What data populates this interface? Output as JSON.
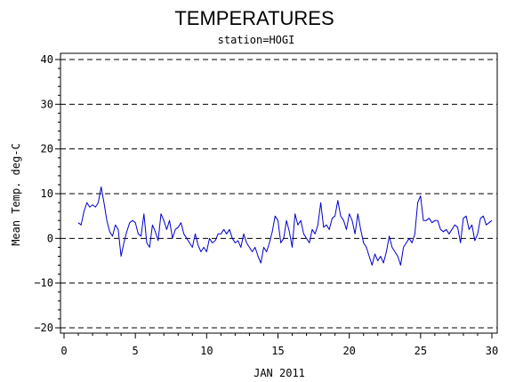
{
  "chart_data": {
    "type": "line",
    "title": "TEMPERATURES",
    "subtitle": "station=HOGI",
    "xlabel": "JAN 2011",
    "ylabel": "Mean Temp. deg-C",
    "xlim": [
      0,
      30
    ],
    "ylim": [
      -20,
      40
    ],
    "x_ticks": [
      0,
      5,
      10,
      15,
      20,
      25,
      30
    ],
    "y_ticks": [
      -20,
      -10,
      0,
      10,
      20,
      30,
      40
    ],
    "grid": "dashed horizontal lines at major y ticks",
    "line_color": "#0000cc",
    "series": [
      {
        "x": [
          1.0,
          1.2,
          1.4,
          1.6,
          1.8,
          2.0,
          2.2,
          2.4,
          2.6,
          2.8,
          3.0,
          3.2,
          3.4,
          3.6,
          3.8,
          4.0,
          4.2,
          4.4,
          4.6,
          4.8,
          5.0,
          5.2,
          5.4,
          5.6,
          5.8,
          6.0,
          6.2,
          6.4,
          6.6,
          6.8,
          7.0,
          7.2,
          7.4,
          7.6,
          7.8,
          8.0,
          8.2,
          8.4,
          8.6,
          8.8,
          9.0,
          9.2,
          9.4,
          9.6,
          9.8,
          10.0,
          10.2,
          10.4,
          10.6,
          10.8,
          11.0,
          11.2,
          11.4,
          11.6,
          11.8,
          12.0,
          12.2,
          12.4,
          12.6,
          12.8,
          13.0,
          13.2,
          13.4,
          13.6,
          13.8,
          14.0,
          14.2,
          14.4,
          14.6,
          14.8,
          15.0,
          15.2,
          15.4,
          15.6,
          15.8,
          16.0,
          16.2,
          16.4,
          16.6,
          16.8,
          17.0,
          17.2,
          17.4,
          17.6,
          17.8,
          18.0,
          18.2,
          18.4,
          18.6,
          18.8,
          19.0,
          19.2,
          19.4,
          19.6,
          19.8,
          20.0,
          20.2,
          20.4,
          20.6,
          20.8,
          21.0,
          21.2,
          21.4,
          21.6,
          21.8,
          22.0,
          22.2,
          22.4,
          22.6,
          22.8,
          23.0,
          23.2,
          23.4,
          23.6,
          23.8,
          24.0,
          24.2,
          24.4,
          24.6,
          24.8,
          25.0,
          25.2,
          25.4,
          25.6,
          25.8,
          26.0,
          26.2,
          26.4,
          26.6,
          26.8,
          27.0,
          27.2,
          27.4,
          27.6,
          27.8,
          28.0,
          28.2,
          28.4,
          28.6,
          28.8,
          29.0,
          29.2,
          29.4,
          29.6,
          29.8,
          30.0
        ],
        "y": [
          3.5,
          3,
          6,
          8,
          7,
          7.5,
          7,
          8,
          11.5,
          8,
          4,
          1.5,
          0.5,
          3,
          2,
          -4,
          -1,
          1.5,
          3.5,
          4,
          3.5,
          1,
          0.5,
          5.5,
          -1,
          -2,
          3,
          1.5,
          -0.5,
          5.5,
          4,
          2,
          4,
          0,
          2,
          2.5,
          3.5,
          1,
          0,
          -1,
          -2,
          1,
          -1.5,
          -3,
          -2,
          -3,
          0,
          -1,
          -0.5,
          1,
          1,
          2,
          1,
          2,
          0,
          -1,
          -0.5,
          -2,
          1,
          -1,
          -2,
          -3,
          -2,
          -4,
          -5.5,
          -2,
          -3,
          -1,
          1.5,
          5,
          4,
          -1,
          0,
          4,
          1.5,
          -2,
          5.5,
          3,
          4,
          1,
          0,
          -1,
          2,
          1,
          3,
          8,
          2.5,
          3,
          2,
          4.5,
          5,
          8.5,
          5,
          4,
          2,
          5.5,
          4,
          1,
          5.5,
          2,
          -1,
          -2,
          -4,
          -6,
          -3.5,
          -5,
          -4,
          -5.5,
          -3,
          0.5,
          -2,
          -3,
          -4,
          -6,
          -2,
          -1,
          0,
          -1,
          1,
          8,
          9.5,
          4,
          4,
          4.5,
          3.5,
          4,
          4,
          2,
          1.5,
          2,
          1,
          2,
          3,
          2.5,
          -1,
          4.5,
          5,
          2,
          3,
          -0.5,
          1,
          4.5,
          5,
          3,
          3.5,
          4
        ]
      }
    ]
  }
}
